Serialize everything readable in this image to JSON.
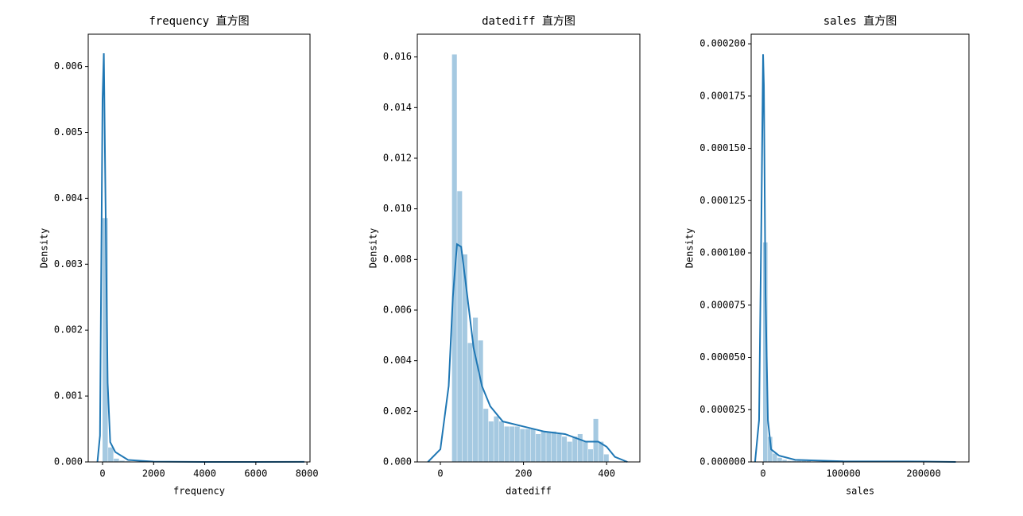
{
  "chart_data": [
    {
      "type": "histogram",
      "title": "frequency 直方图",
      "x_label": "frequency",
      "y_label": "Density",
      "color": "#1f77b4",
      "xlim": [
        -560,
        8120
      ],
      "xticks": [
        0,
        2000,
        4000,
        6000,
        8000
      ],
      "ylim": [
        0,
        0.00649
      ],
      "yticks": [
        {
          "value": 0,
          "label": "0.000"
        },
        {
          "value": 0.001,
          "label": "0.001"
        },
        {
          "value": 0.002,
          "label": "0.002"
        },
        {
          "value": 0.003,
          "label": "0.003"
        },
        {
          "value": 0.004,
          "label": "0.004"
        },
        {
          "value": 0.005,
          "label": "0.005"
        },
        {
          "value": 0.006,
          "label": "0.006"
        }
      ],
      "bins": [
        0,
        220,
        440,
        660,
        880,
        1100,
        1320,
        1540,
        1760,
        1980,
        2200,
        2420,
        2640,
        2860,
        3080,
        3300,
        3520,
        3740,
        3960,
        4180,
        4400,
        4620,
        4840,
        5060,
        5280,
        5500,
        5720,
        5940,
        6160,
        6380,
        6600,
        6820,
        7040,
        7260,
        7480,
        7700,
        7920
      ],
      "values": [
        0.0037,
        0.00022,
        5e-05,
        2e-05,
        1e-05,
        5e-06,
        3e-06,
        2e-06,
        0,
        0,
        0,
        0,
        0,
        0,
        0,
        0,
        0,
        0,
        0,
        0,
        0,
        0,
        0,
        0,
        0,
        0,
        0,
        0,
        0,
        0,
        0,
        0,
        0,
        0,
        0,
        2e-06
      ],
      "kde": {
        "x": [
          -200,
          -100,
          0,
          50,
          100,
          200,
          300,
          500,
          1000,
          2000,
          4000,
          6000,
          7900
        ],
        "values": [
          0,
          0.0004,
          0.0055,
          0.0062,
          0.0045,
          0.0012,
          0.0003,
          0.00015,
          3e-05,
          5e-06,
          0,
          0,
          2e-06
        ]
      }
    },
    {
      "type": "histogram",
      "title": "datediff 直方图",
      "x_label": "datediff",
      "y_label": "Density",
      "color": "#1f77b4",
      "xlim": [
        -55.5,
        480
      ],
      "xticks": [
        0,
        200,
        400
      ],
      "ylim": [
        0,
        0.0169
      ],
      "yticks": [
        {
          "value": 0,
          "label": "0.000"
        },
        {
          "value": 0.002,
          "label": "0.002"
        },
        {
          "value": 0.004,
          "label": "0.004"
        },
        {
          "value": 0.006,
          "label": "0.006"
        },
        {
          "value": 0.008,
          "label": "0.008"
        },
        {
          "value": 0.01,
          "label": "0.010"
        },
        {
          "value": 0.012,
          "label": "0.012"
        },
        {
          "value": 0.014,
          "label": "0.014"
        },
        {
          "value": 0.016,
          "label": "0.016"
        }
      ],
      "bins": [
        28,
        40.6,
        53.2,
        65.8,
        78.4,
        91,
        103.6,
        116.2,
        128.8,
        141.4,
        154,
        166.6,
        179.2,
        191.8,
        204.4,
        217,
        229.6,
        242.2,
        254.8,
        267.4,
        280,
        292.6,
        305.2,
        317.8,
        330.4,
        343,
        355.6,
        368.2,
        380.8,
        393.4,
        406
      ],
      "values": [
        0.0161,
        0.0107,
        0.0082,
        0.0047,
        0.0057,
        0.0048,
        0.0021,
        0.0016,
        0.0018,
        0.0016,
        0.0014,
        0.0014,
        0.0014,
        0.0013,
        0.0013,
        0.0013,
        0.0011,
        0.0012,
        0.0012,
        0.0012,
        0.0011,
        0.001,
        0.0008,
        0.001,
        0.0011,
        0.0008,
        0.0005,
        0.0017,
        0.0008,
        0.0003
      ],
      "kde": {
        "x": [
          -30,
          0,
          20,
          30,
          40,
          50,
          60,
          80,
          100,
          120,
          150,
          200,
          250,
          300,
          350,
          380,
          400,
          420,
          450
        ],
        "values": [
          0,
          0.0005,
          0.003,
          0.0065,
          0.0086,
          0.0085,
          0.0072,
          0.0045,
          0.003,
          0.0022,
          0.0016,
          0.0014,
          0.0012,
          0.0011,
          0.0008,
          0.0008,
          0.0006,
          0.0002,
          0
        ]
      }
    },
    {
      "type": "histogram",
      "title": "sales 直方图",
      "x_label": "sales",
      "y_label": "Density",
      "color": "#1f77b4",
      "xlim": [
        -14850,
        256400
      ],
      "xticks": [
        0,
        100000,
        200000
      ],
      "ylim": [
        0,
        0.0002046
      ],
      "yticks": [
        {
          "value": 0,
          "label": "0.000000"
        },
        {
          "value": 2.5e-05,
          "label": "0.000025"
        },
        {
          "value": 5e-05,
          "label": "0.000050"
        },
        {
          "value": 7.5e-05,
          "label": "0.000075"
        },
        {
          "value": 0.0001,
          "label": "0.000100"
        },
        {
          "value": 0.000125,
          "label": "0.000125"
        },
        {
          "value": 0.00015,
          "label": "0.000150"
        },
        {
          "value": 0.000175,
          "label": "0.000175"
        },
        {
          "value": 0.0002,
          "label": "0.000200"
        }
      ],
      "bins": [
        0,
        6000,
        12000,
        18000,
        24000,
        30000,
        36000,
        42000,
        48000,
        54000,
        60000,
        66000,
        72000,
        78000,
        84000,
        90000,
        96000,
        102000,
        108000,
        114000,
        120000,
        126000,
        132000,
        138000,
        144000,
        150000,
        156000,
        162000,
        168000,
        174000,
        180000,
        186000,
        192000,
        198000,
        204000,
        210000,
        216000,
        222000,
        228000,
        234000,
        240000
      ],
      "values": [
        0.000105,
        1.2e-05,
        4e-06,
        2e-06,
        1e-06,
        5e-07,
        5e-07,
        5e-07,
        5e-07,
        5e-07,
        0,
        0,
        0,
        0,
        0,
        0,
        0,
        0,
        0,
        0,
        0,
        0,
        0,
        0,
        0,
        0,
        0,
        0,
        0,
        0,
        0,
        0,
        0,
        0,
        0,
        0,
        0,
        0,
        0,
        0
      ],
      "kde": {
        "x": [
          -10000,
          -5000,
          -2000,
          0,
          1000,
          3000,
          6000,
          10000,
          20000,
          40000,
          100000,
          200000,
          240000
        ],
        "values": [
          0,
          2e-05,
          0.00012,
          0.000195,
          0.00018,
          8e-05,
          2e-05,
          6e-06,
          3e-06,
          1e-06,
          3e-07,
          2e-07,
          0
        ]
      }
    }
  ]
}
